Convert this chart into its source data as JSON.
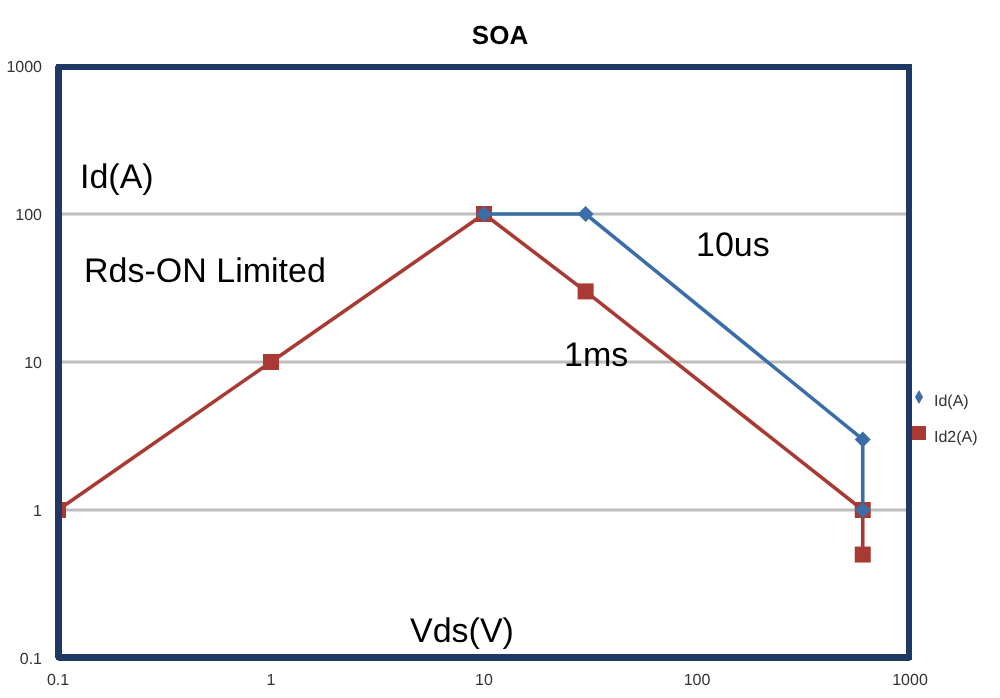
{
  "chart_data": {
    "type": "line",
    "title": "SOA",
    "xlabel": "Vds(V)",
    "ylabel": "Id(A)",
    "log": "xy",
    "xlim": [
      0.1,
      1000
    ],
    "ylim": [
      0.1,
      1000
    ],
    "xticks": [
      0.1,
      1,
      10,
      100,
      1000
    ],
    "yticks": [
      0.1,
      1,
      10,
      100,
      1000
    ],
    "grid": "y",
    "legend": "right",
    "annotations": [
      "Rds-ON Limited",
      "10us",
      "1ms"
    ],
    "series": [
      {
        "name": "Id(A)",
        "color": "#3b6ea8",
        "marker": "diamond",
        "x": [
          10,
          30,
          600,
          600
        ],
        "values": [
          100,
          100,
          3,
          1
        ]
      },
      {
        "name": "Id2(A)",
        "color": "#a93a33",
        "marker": "square",
        "x": [
          0.1,
          1,
          10,
          30,
          600,
          600
        ],
        "values": [
          1,
          10,
          100,
          30,
          1,
          0.5
        ]
      }
    ]
  }
}
